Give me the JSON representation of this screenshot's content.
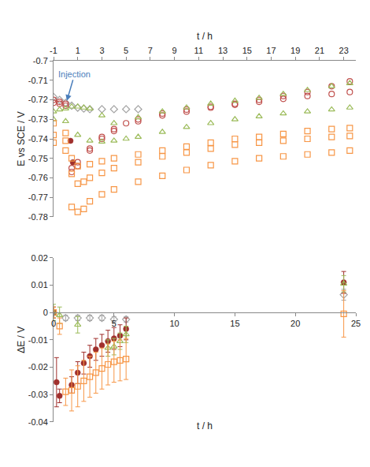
{
  "chart_data": [
    {
      "type": "scatter",
      "xlabel": "t / h",
      "ylabel": "E vs SCE / V",
      "xlim": [
        -1,
        24
      ],
      "ylim": [
        -0.78,
        -0.7
      ],
      "xticks": [
        -1,
        1,
        3,
        5,
        7,
        9,
        11,
        13,
        15,
        17,
        19,
        21,
        23
      ],
      "yticks": [
        -0.7,
        -0.71,
        -0.72,
        -0.73,
        -0.74,
        -0.75,
        -0.76,
        -0.77,
        -0.78
      ],
      "annotations": [
        {
          "text": "Injection",
          "x": 0.1,
          "y": -0.7205,
          "color": "#4a7ebb"
        }
      ],
      "series": [
        {
          "color": "#a5a5a5",
          "marker": "diamond-open",
          "x": [
            -1,
            -0.5,
            0,
            0.5,
            1,
            1.5,
            2,
            3,
            4,
            5,
            6
          ],
          "values": [
            -0.7185,
            -0.72,
            -0.7215,
            -0.723,
            -0.724,
            -0.7245,
            -0.7248,
            -0.7248,
            -0.7248,
            -0.7248,
            -0.7248
          ]
        },
        {
          "color": "#c0504d",
          "marker": "circle-open",
          "x": [
            -1,
            -0.5,
            0,
            0.5,
            1,
            2,
            3,
            4,
            5,
            6,
            8,
            10,
            12,
            14,
            16,
            18,
            20,
            22,
            23.5
          ],
          "values": [
            -0.72,
            -0.721,
            -0.722,
            -0.755,
            -0.752,
            -0.745,
            -0.739,
            -0.735,
            -0.732,
            -0.73,
            -0.727,
            -0.725,
            -0.7235,
            -0.722,
            -0.72,
            -0.718,
            -0.716,
            -0.713,
            -0.7105
          ]
        },
        {
          "color": "#c0504d",
          "marker": "circle-open",
          "x": [
            -1,
            -0.5,
            0,
            0.5,
            1,
            2,
            3,
            4,
            6,
            8,
            10,
            12,
            14,
            16,
            18,
            20,
            22,
            23.5
          ],
          "values": [
            -0.7215,
            -0.722,
            -0.723,
            -0.757,
            -0.754,
            -0.746,
            -0.74,
            -0.736,
            -0.731,
            -0.728,
            -0.726,
            -0.724,
            -0.7225,
            -0.721,
            -0.7195,
            -0.718,
            -0.717,
            -0.716
          ]
        },
        {
          "color": "#a0302d",
          "marker": "circle",
          "x": [
            0.4,
            0.6
          ],
          "values": [
            -0.741,
            -0.752
          ]
        },
        {
          "color": "#9bbb59",
          "marker": "triangle-up-open",
          "x": [
            -1,
            -0.5,
            0,
            0.5,
            1,
            1.5,
            2,
            3,
            4,
            6,
            8,
            10,
            12,
            14,
            16,
            18,
            20,
            22,
            23.5
          ],
          "values": [
            -0.726,
            -0.725,
            -0.7245,
            -0.7235,
            -0.7235,
            -0.724,
            -0.7245,
            -0.728,
            -0.732,
            -0.729,
            -0.726,
            -0.724,
            -0.722,
            -0.7205,
            -0.719,
            -0.717,
            -0.715,
            -0.713,
            -0.7115
          ]
        },
        {
          "color": "#9bbb59",
          "marker": "triangle-up-open",
          "x": [
            -1,
            0,
            1,
            2,
            3,
            4,
            5,
            6,
            8,
            10,
            12,
            14,
            16,
            18,
            20,
            22,
            23.5
          ],
          "values": [
            -0.73,
            -0.731,
            -0.738,
            -0.741,
            -0.7415,
            -0.741,
            -0.74,
            -0.739,
            -0.7365,
            -0.734,
            -0.732,
            -0.73,
            -0.7285,
            -0.727,
            -0.726,
            -0.725,
            -0.724
          ]
        },
        {
          "color": "#f79646",
          "marker": "square-open",
          "x": [
            -1,
            0,
            0.5,
            1,
            2,
            3,
            4,
            6,
            8,
            10,
            12,
            14,
            16,
            18,
            20,
            22,
            23.5
          ],
          "values": [
            -0.732,
            -0.737,
            -0.75,
            -0.754,
            -0.753,
            -0.7515,
            -0.75,
            -0.748,
            -0.746,
            -0.744,
            -0.742,
            -0.74,
            -0.739,
            -0.7375,
            -0.736,
            -0.735,
            -0.7345
          ]
        },
        {
          "color": "#f79646",
          "marker": "square-open",
          "x": [
            -1,
            0,
            0.5,
            1,
            1.5,
            2,
            3,
            4,
            6,
            8,
            10,
            12,
            14,
            16,
            18,
            20,
            22,
            23.5
          ],
          "values": [
            -0.738,
            -0.741,
            -0.758,
            -0.763,
            -0.762,
            -0.76,
            -0.7575,
            -0.755,
            -0.752,
            -0.749,
            -0.747,
            -0.745,
            -0.743,
            -0.742,
            -0.741,
            -0.74,
            -0.739,
            -0.7385
          ]
        },
        {
          "color": "#f79646",
          "marker": "square-open",
          "x": [
            -1,
            0,
            0.5,
            1,
            1.5,
            2,
            3,
            4,
            6,
            8,
            10,
            12,
            14,
            16,
            18,
            20,
            22,
            23.5
          ],
          "values": [
            -0.742,
            -0.746,
            -0.775,
            -0.7775,
            -0.776,
            -0.772,
            -0.7685,
            -0.766,
            -0.762,
            -0.759,
            -0.756,
            -0.7535,
            -0.7515,
            -0.75,
            -0.749,
            -0.748,
            -0.747,
            -0.746
          ]
        }
      ]
    },
    {
      "type": "scatter",
      "xlabel": "t / h",
      "ylabel": "ΔE / V",
      "xlim": [
        0,
        25
      ],
      "ylim": [
        -0.04,
        0.02
      ],
      "xticks": [
        0,
        5,
        10,
        15,
        20,
        25
      ],
      "yticks": [
        0.02,
        0.01,
        0,
        -0.01,
        -0.02,
        -0.03,
        -0.04
      ],
      "series": [
        {
          "color": "#a5a5a5",
          "marker": "diamond-open",
          "x": [
            0,
            1,
            2,
            3,
            4,
            5,
            6,
            24
          ],
          "values": [
            0,
            -0.002,
            -0.002,
            -0.002,
            -0.002,
            -0.0025,
            -0.0025,
            0.0065
          ],
          "errors": [
            0.001,
            0.001,
            0.001,
            0.001,
            0.001,
            0.001,
            0.001,
            0.002
          ]
        },
        {
          "color": "#a0302d",
          "marker": "circle",
          "x": [
            0,
            0.25,
            0.5,
            1.5,
            2,
            2.5,
            3,
            3.5,
            4,
            4.5,
            5,
            5.5,
            6,
            24
          ],
          "values": [
            0,
            -0.0255,
            -0.0305,
            -0.0265,
            -0.022,
            -0.0185,
            -0.016,
            -0.0135,
            -0.012,
            -0.0105,
            -0.0095,
            -0.0085,
            -0.006,
            0.011
          ],
          "errors": [
            0.002,
            0.009,
            0.0025,
            0.003,
            0.004,
            0.004,
            0.004,
            0.004,
            0.004,
            0.004,
            0.004,
            0.004,
            0.004,
            0.004
          ]
        },
        {
          "color": "#9bbb59",
          "marker": "triangle-up-open",
          "x": [
            0,
            0.5,
            2,
            4.5,
            5,
            5.5,
            6,
            24
          ],
          "values": [
            0,
            -0.001,
            -0.0045,
            -0.013,
            -0.0125,
            -0.0105,
            -0.008,
            0.0105
          ],
          "errors": [
            0.003,
            0.003,
            0.003,
            0.003,
            0.003,
            0.003,
            0.003,
            0.003
          ]
        },
        {
          "color": "#f79646",
          "marker": "square-open",
          "x": [
            0,
            0.5,
            1,
            1.5,
            2,
            2.5,
            3,
            3.5,
            4,
            4.5,
            5,
            5.5,
            6,
            24
          ],
          "values": [
            0,
            -0.005,
            -0.029,
            -0.0285,
            -0.027,
            -0.025,
            -0.0235,
            -0.022,
            -0.0205,
            -0.019,
            -0.018,
            -0.0175,
            -0.017,
            -0.0005
          ],
          "errors": [
            0.002,
            0.003,
            0.005,
            0.0075,
            0.0075,
            0.0075,
            0.0075,
            0.0075,
            0.0075,
            0.0075,
            0.0075,
            0.0075,
            0.0075,
            0.0085
          ]
        }
      ]
    }
  ]
}
